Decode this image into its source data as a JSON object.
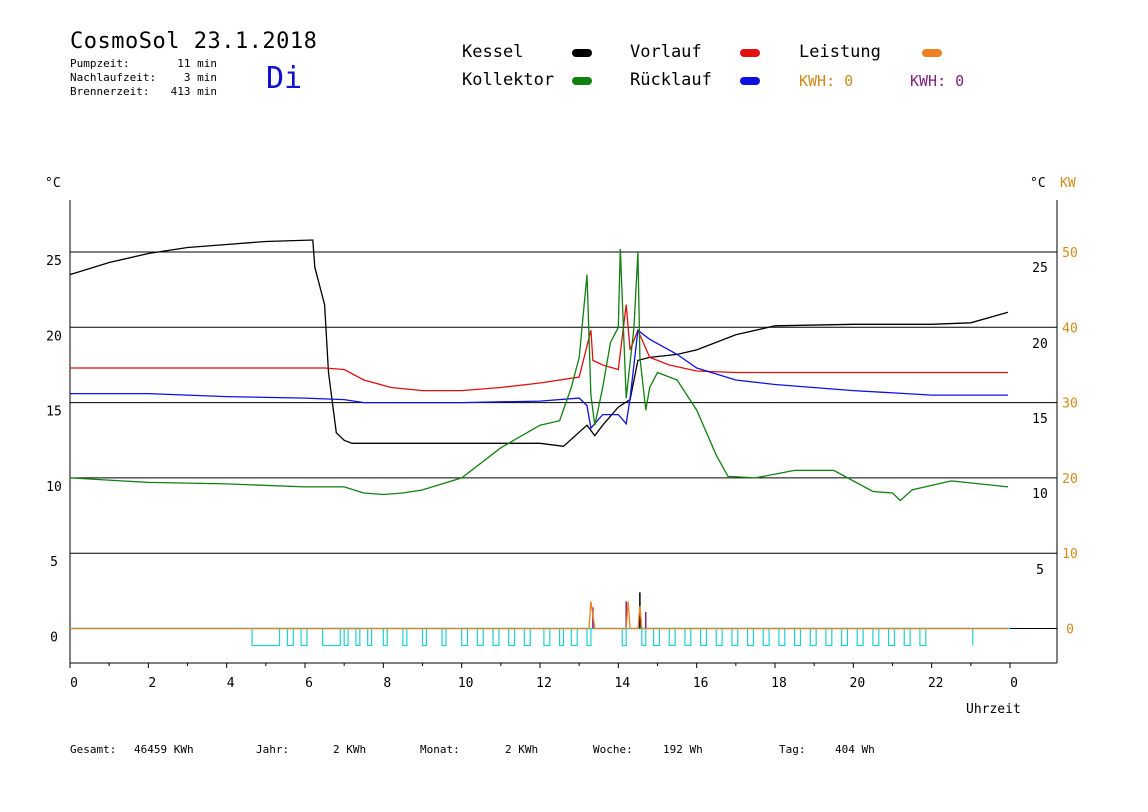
{
  "header": {
    "title": "CosmoSol 23.1.2018",
    "day": "Di",
    "stats": [
      {
        "label": "Pumpzeit:",
        "value": "11 min"
      },
      {
        "label": "Nachlaufzeit:",
        "value": "3 min"
      },
      {
        "label": "Brennerzeit:",
        "value": "413 min"
      }
    ]
  },
  "legend": {
    "items": [
      {
        "name": "Kessel",
        "color": "#000000"
      },
      {
        "name": "Vorlauf",
        "color": "#e01010"
      },
      {
        "name": "Leistung",
        "color": "#f08020"
      },
      {
        "name": "Kollektor",
        "color": "#108010"
      },
      {
        "name": "Rücklauf",
        "color": "#1010e0"
      }
    ],
    "kwh1": "KWH: 0",
    "kwh1_color": "#d08a1a",
    "kwh2": "KWH: 0",
    "kwh2_color": "#802080"
  },
  "axes": {
    "left_unit": "°C",
    "right_unit": "°C",
    "right_unit2": "KW",
    "xlabel": "Uhrzeit",
    "x_ticks": [
      "0",
      "2",
      "4",
      "6",
      "8",
      "10",
      "12",
      "14",
      "16",
      "18",
      "20",
      "22",
      "0"
    ],
    "left_ticks": [
      "25",
      "20",
      "15",
      "10",
      "5",
      "0"
    ],
    "right_temp_ticks": [
      "25",
      "20",
      "15",
      "10",
      "5"
    ],
    "right_kw_ticks": [
      "50",
      "40",
      "30",
      "20",
      "10",
      "0"
    ]
  },
  "footer": [
    {
      "label": "Gesamt:",
      "value": "46459 KWh"
    },
    {
      "label": "Jahr:",
      "value": "2 KWh"
    },
    {
      "label": "Monat:",
      "value": "2 KWh"
    },
    {
      "label": "Woche:",
      "value": "192 Wh"
    },
    {
      "label": "Tag:",
      "value": "404 Wh"
    }
  ],
  "chart_data": {
    "type": "line",
    "x_unit": "hour",
    "xlim": [
      0,
      24
    ],
    "ylim": [
      0,
      25
    ],
    "series": [
      {
        "name": "Kessel",
        "color": "#000000",
        "x": [
          0,
          1,
          2,
          3,
          4,
          5,
          6.2,
          6.25,
          6.5,
          6.6,
          6.8,
          7.0,
          7.2,
          8,
          10,
          12,
          12.6,
          13.2,
          13.4,
          13.6,
          14.0,
          14.3,
          14.5,
          14.8,
          15.5,
          16,
          17,
          18,
          20,
          22,
          23,
          23.95
        ],
        "y": [
          23.5,
          24.3,
          24.9,
          25.3,
          25.5,
          25.7,
          25.8,
          24,
          21.5,
          17,
          13,
          12.5,
          12.3,
          12.3,
          12.3,
          12.3,
          12.1,
          13.5,
          12.8,
          13.5,
          14.7,
          15.2,
          17.8,
          18,
          18.2,
          18.5,
          19.5,
          20.1,
          20.2,
          20.2,
          20.3,
          21
        ]
      },
      {
        "name": "Vorlauf",
        "color": "#e01010",
        "x": [
          0,
          3,
          6.5,
          7.0,
          7.5,
          8.2,
          9,
          10,
          11,
          12,
          13.0,
          13.3,
          13.35,
          13.6,
          14.0,
          14.2,
          14.3,
          14.5,
          14.8,
          15.3,
          16,
          17,
          18,
          20,
          22,
          23.95
        ],
        "y": [
          17.3,
          17.3,
          17.3,
          17.2,
          16.5,
          16,
          15.8,
          15.8,
          16,
          16.3,
          16.7,
          19.8,
          17.8,
          17.5,
          17.2,
          21.5,
          18.5,
          19.8,
          18,
          17.5,
          17.1,
          17,
          17,
          17,
          17,
          17
        ]
      },
      {
        "name": "Rücklauf",
        "color": "#1010e0",
        "x": [
          0,
          2,
          4,
          6,
          7,
          7.5,
          8,
          10,
          12,
          13.0,
          13.2,
          13.3,
          13.6,
          14.0,
          14.2,
          14.3,
          14.5,
          14.8,
          15.5,
          16,
          17,
          18,
          20,
          22,
          23.95
        ],
        "y": [
          15.6,
          15.6,
          15.4,
          15.3,
          15.2,
          15.0,
          15.0,
          15.0,
          15.1,
          15.3,
          14.8,
          13.3,
          14.2,
          14.2,
          13.6,
          15.3,
          19.8,
          19.2,
          18.2,
          17.3,
          16.5,
          16.2,
          15.8,
          15.5,
          15.5
        ]
      },
      {
        "name": "Kollektor",
        "color": "#108010",
        "x": [
          0,
          2,
          4,
          6,
          7,
          7.5,
          8,
          8.5,
          9,
          10,
          11,
          12,
          12.5,
          12.8,
          13.0,
          13.2,
          13.3,
          13.4,
          13.6,
          13.8,
          14.0,
          14.05,
          14.2,
          14.4,
          14.5,
          14.55,
          14.7,
          14.8,
          15,
          15.5,
          16,
          16.5,
          16.8,
          17.5,
          18.5,
          19.5,
          20.5,
          21,
          21.2,
          21.5,
          22,
          22.5,
          23.95
        ],
        "y": [
          10.0,
          9.7,
          9.6,
          9.4,
          9.4,
          9.0,
          8.9,
          9.0,
          9.2,
          10.0,
          12.0,
          13.5,
          13.8,
          16,
          18,
          23.5,
          15.5,
          13.5,
          16,
          19,
          20,
          25.2,
          15.3,
          20,
          25,
          18,
          14.5,
          16,
          17,
          16.5,
          14.5,
          11.5,
          10.1,
          10,
          10.5,
          10.5,
          9.1,
          9.0,
          8.5,
          9.2,
          9.5,
          9.8,
          9.4
        ]
      },
      {
        "name": "Leistung",
        "color": "#f08020",
        "x": [
          0,
          13.25,
          13.3,
          13.4,
          14.2,
          14.25,
          14.3,
          14.5,
          14.55,
          14.6,
          23.95
        ],
        "y": [
          0,
          0,
          1.8,
          0,
          0,
          1.8,
          0,
          0,
          1.5,
          0,
          0
        ]
      }
    ]
  }
}
